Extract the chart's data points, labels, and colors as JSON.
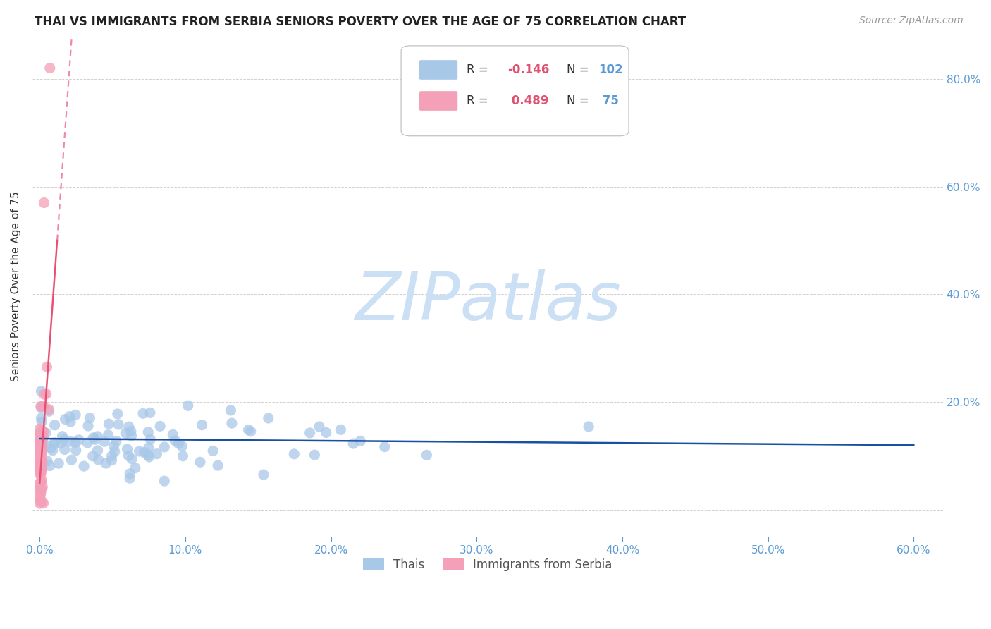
{
  "title": "THAI VS IMMIGRANTS FROM SERBIA SENIORS POVERTY OVER THE AGE OF 75 CORRELATION CHART",
  "source": "Source: ZipAtlas.com",
  "ylabel": "Seniors Poverty Over the Age of 75",
  "blue_marker_color": "#a8c8e8",
  "pink_marker_color": "#f4a0b8",
  "trend_blue_color": "#1a50a0",
  "trend_pink_solid_color": "#e8507080",
  "trend_pink_dash_color": "#e8507040",
  "axis_color": "#5b9bd5",
  "bg_color": "#ffffff",
  "watermark_color": "#cce0f5",
  "legend_R_label_color": "#333333",
  "legend_value_color": "#5b9bd5",
  "legend_pink_value_color": "#5b9bd5",
  "xlim": [
    -0.005,
    0.62
  ],
  "ylim": [
    -0.05,
    0.88
  ],
  "xticks": [
    0.0,
    0.1,
    0.2,
    0.3,
    0.4,
    0.5,
    0.6
  ],
  "yticks_right": [
    0.2,
    0.4,
    0.6,
    0.8
  ],
  "ytick_right_labels": [
    "20.0%",
    "40.0%",
    "60.0%",
    "80.0%"
  ],
  "bottom_legend": [
    "Thais",
    "Immigrants from Serbia"
  ]
}
